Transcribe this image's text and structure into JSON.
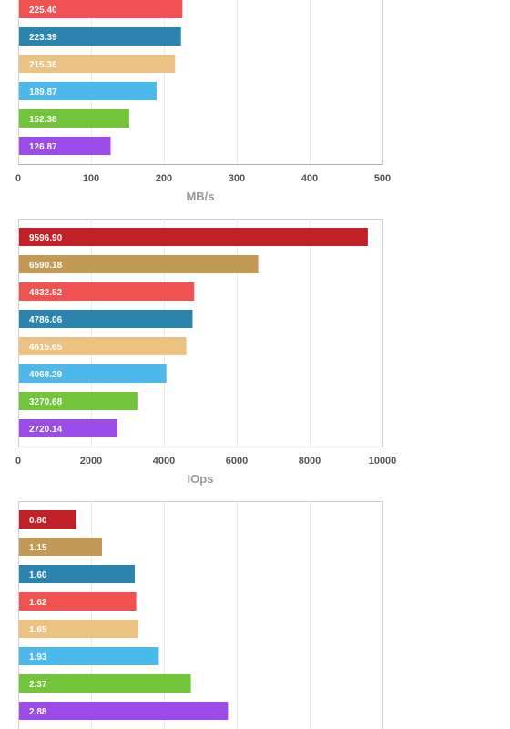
{
  "chart_data": [
    {
      "type": "bar",
      "orientation": "horizontal",
      "xlabel": "MB/s",
      "xlim": [
        0,
        500
      ],
      "xticks": [
        "0",
        "100",
        "200",
        "300",
        "400",
        "500"
      ],
      "grid": "vertical",
      "values": [
        225.4,
        223.39,
        215.36,
        189.87,
        152.38,
        126.87
      ],
      "labels": [
        "225.40",
        "223.39",
        "215.36",
        "189.87",
        "152.38",
        "126.87"
      ],
      "colors": [
        "#f05252",
        "#2b84ad",
        "#ecc282",
        "#4db8ea",
        "#72c43a",
        "#9a4be8"
      ]
    },
    {
      "type": "bar",
      "orientation": "horizontal",
      "xlabel": "IOps",
      "xlim": [
        0,
        10000
      ],
      "xticks": [
        "0",
        "2000",
        "4000",
        "6000",
        "8000",
        "10000"
      ],
      "grid": "vertical",
      "values": [
        9596.9,
        6590.18,
        4832.52,
        4786.06,
        4615.65,
        4068.29,
        3270.68,
        2720.14
      ],
      "labels": [
        "9596.90",
        "6590.18",
        "4832.52",
        "4786.06",
        "4615.65",
        "4068.29",
        "3270.68",
        "2720.14"
      ],
      "colors": [
        "#c02026",
        "#c29a56",
        "#f05252",
        "#2b84ad",
        "#ecc282",
        "#4db8ea",
        "#72c43a",
        "#9a4be8"
      ]
    },
    {
      "type": "bar",
      "orientation": "horizontal",
      "xlim": [
        0,
        5
      ],
      "grid": "vertical",
      "values": [
        0.8,
        1.15,
        1.6,
        1.62,
        1.65,
        1.93,
        2.37,
        2.88
      ],
      "labels": [
        "0.80",
        "1.15",
        "1.60",
        "1.62",
        "1.65",
        "1.93",
        "2.37",
        "2.88"
      ],
      "colors": [
        "#c02026",
        "#c29a56",
        "#2b84ad",
        "#f05252",
        "#ecc282",
        "#4db8ea",
        "#72c43a",
        "#9a4be8"
      ]
    }
  ]
}
